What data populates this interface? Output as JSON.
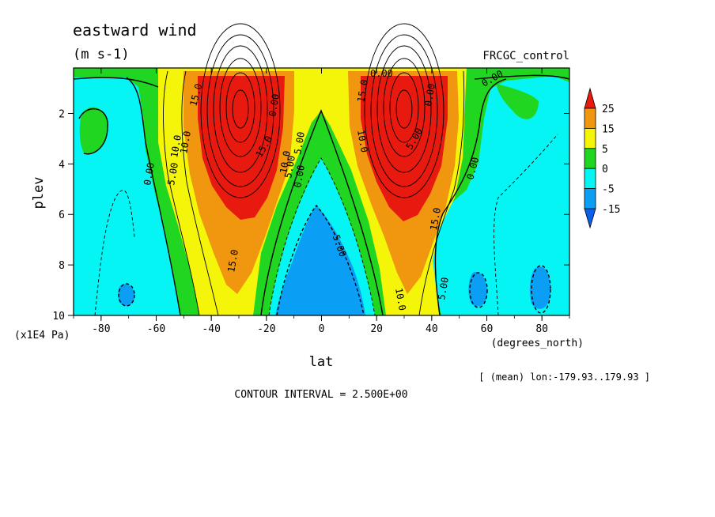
{
  "chart_data": {
    "type": "heatmap",
    "title": "eastward wind",
    "units": "(m s-1)",
    "case_label": "FRCGC_control",
    "xlabel": "lat",
    "xunits": "(degrees_north)",
    "ylabel": "plev",
    "yunits": "(x1E4 Pa)",
    "xlim": [
      -90,
      90
    ],
    "ylim": [
      10,
      0.2
    ],
    "x_ticks": [
      "-80",
      "-60",
      "-40",
      "-20",
      "0",
      "20",
      "40",
      "60",
      "80"
    ],
    "y_ticks": [
      "2",
      "4",
      "6",
      "8",
      "10"
    ],
    "contour_interval_text": "CONTOUR INTERVAL = 2.500E+00",
    "averaging_text": "[ (mean) lon:-179.93..179.93 ]",
    "colorbar": {
      "levels": [
        "25",
        "15",
        "5",
        "0",
        "-5",
        "-15"
      ],
      "colors": [
        "#e8190f",
        "#f0960f",
        "#f5f50a",
        "#21d621",
        "#05f5f5",
        "#0a9ef5",
        "#0a60e8"
      ]
    },
    "contour_labels": [
      "15.0",
      "10.0",
      "5.00",
      "0.00",
      "0.00",
      "15.0",
      "10.0",
      "5.00",
      "0.00",
      "15.0",
      "10.0",
      "5.00",
      "0.00",
      "15.0",
      "10.0",
      "5.00",
      "0.00",
      "-5.00",
      "0.00",
      "0.00",
      "5.00",
      "10.0",
      "15.0"
    ],
    "features": {
      "jets": [
        {
          "lat": -30,
          "plev": 2,
          "peak": 27.5
        },
        {
          "lat": 30,
          "plev": 2,
          "peak": 27.5
        }
      ],
      "easterly_minimum": {
        "lat": 0,
        "plev": 9,
        "value": -12
      }
    }
  }
}
